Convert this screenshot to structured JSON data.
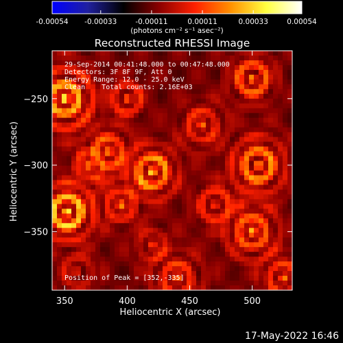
{
  "colorbar": {
    "tick_labels": [
      "-0.00054",
      "-0.00033",
      "-0.00011",
      "0.00011",
      "0.00033",
      "0.00054"
    ],
    "ticks": [
      -0.00054,
      -0.00033,
      -0.00011,
      0.00011,
      0.00033,
      0.00054
    ],
    "range": [
      -0.00054,
      0.00054
    ],
    "units": "(photons cm⁻² s⁻¹ asec⁻²)",
    "colormap": [
      "#0000ff",
      "#2020a0",
      "#000000",
      "#8b0000",
      "#ff2000",
      "#ff9000",
      "#ffff40",
      "#ffffff"
    ]
  },
  "chart_data": {
    "type": "heatmap",
    "title": "Reconstructed RHESSI Image",
    "xlabel": "Heliocentric X (arcsec)",
    "ylabel": "Heliocentric Y (arcsec)",
    "xlim": [
      340,
      532
    ],
    "ylim": [
      -394,
      -214
    ],
    "xticks": [
      350,
      400,
      450,
      500
    ],
    "xtick_labels": [
      "350",
      "400",
      "450",
      "500"
    ],
    "yticks": [
      -250,
      -300,
      -350
    ],
    "ytick_labels": [
      "−250",
      "−300",
      "−350"
    ],
    "annotations": [
      "29-Sep-2014 00:41:48.000 to 00:47:48.000",
      "Detectors: 3F 8F 9F, Att 0",
      "Energy Range: 12.0 - 25.0 keV",
      "Clean    Total counts: 2.16E+03"
    ],
    "peak_label": "Position of Peak = [352,-335]",
    "peak": [
      352,
      -335
    ],
    "sources": [
      {
        "x": 352,
        "y": -335,
        "amp": 1.0,
        "w": 14
      },
      {
        "x": 350,
        "y": -250,
        "amp": 0.9,
        "w": 16
      },
      {
        "x": 420,
        "y": -305,
        "amp": 0.85,
        "w": 13
      },
      {
        "x": 385,
        "y": -290,
        "amp": 0.6,
        "w": 12
      },
      {
        "x": 505,
        "y": -300,
        "amp": 0.75,
        "w": 15
      },
      {
        "x": 400,
        "y": -250,
        "amp": 0.55,
        "w": 10
      },
      {
        "x": 500,
        "y": -235,
        "amp": 0.7,
        "w": 12
      },
      {
        "x": 460,
        "y": -270,
        "amp": 0.5,
        "w": 12
      },
      {
        "x": 470,
        "y": -330,
        "amp": 0.45,
        "w": 12
      },
      {
        "x": 500,
        "y": -350,
        "amp": 0.65,
        "w": 14
      },
      {
        "x": 440,
        "y": -385,
        "amp": 0.5,
        "w": 14
      },
      {
        "x": 420,
        "y": -360,
        "amp": 0.35,
        "w": 10
      },
      {
        "x": 395,
        "y": -330,
        "amp": 0.5,
        "w": 11
      },
      {
        "x": 370,
        "y": -300,
        "amp": 0.45,
        "w": 10
      },
      {
        "x": 525,
        "y": -385,
        "amp": 0.55,
        "w": 12
      },
      {
        "x": 360,
        "y": -380,
        "amp": 0.3,
        "w": 12
      }
    ]
  },
  "timestamp": "17-May-2022 16:46"
}
